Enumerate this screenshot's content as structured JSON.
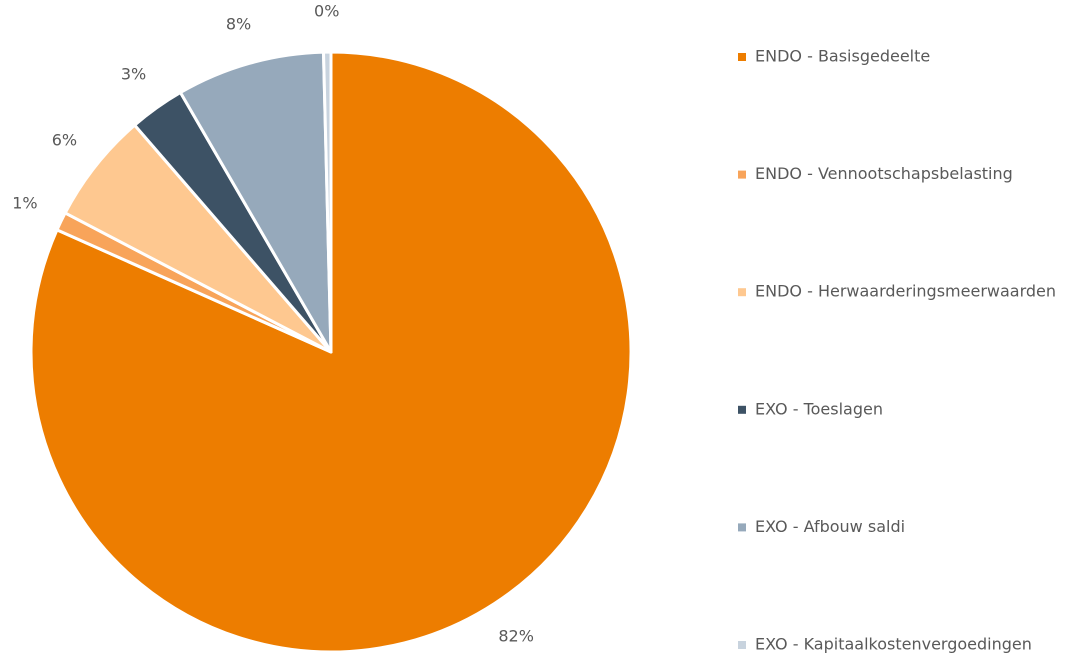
{
  "chart_data": {
    "type": "pie",
    "categories": [
      "ENDO - Basisgedeelte",
      "ENDO - Vennootschapsbelasting",
      "ENDO - Herwaarderingsmeerwaarden",
      "EXO - Toeslagen",
      "EXO - Afbouw saldi",
      "EXO - Kapitaalkostenvergoedingen"
    ],
    "values": [
      82,
      1,
      6,
      3,
      8,
      0.4
    ],
    "value_labels": [
      "82%",
      "1%",
      "6%",
      "3%",
      "8%",
      "0%"
    ],
    "colors": [
      "#ed7d00",
      "#f8a45a",
      "#fec890",
      "#3d5265",
      "#96a9bb",
      "#c8d3de"
    ],
    "legend": "right"
  }
}
